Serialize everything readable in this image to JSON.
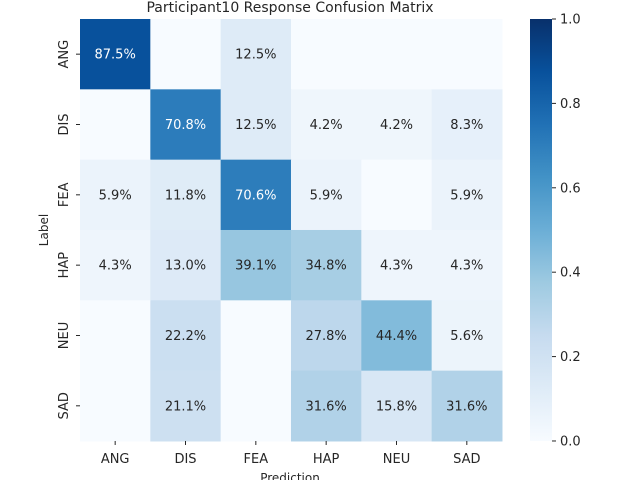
{
  "chart_data": {
    "type": "heatmap",
    "title": "Participant10 Response Confusion Matrix",
    "xlabel": "Prediction",
    "ylabel": "Label",
    "x_categories": [
      "ANG",
      "DIS",
      "FEA",
      "HAP",
      "NEU",
      "SAD"
    ],
    "y_categories": [
      "ANG",
      "DIS",
      "FEA",
      "HAP",
      "NEU",
      "SAD"
    ],
    "values": [
      [
        0.875,
        0.0,
        0.125,
        0.0,
        0.0,
        0.0
      ],
      [
        0.0,
        0.708,
        0.125,
        0.042,
        0.042,
        0.083
      ],
      [
        0.059,
        0.118,
        0.706,
        0.059,
        0.0,
        0.059
      ],
      [
        0.043,
        0.13,
        0.391,
        0.348,
        0.043,
        0.043
      ],
      [
        0.0,
        0.222,
        0.0,
        0.278,
        0.444,
        0.056
      ],
      [
        0.0,
        0.211,
        0.0,
        0.316,
        0.158,
        0.316
      ]
    ],
    "cell_labels": [
      [
        "87.5%",
        "",
        "12.5%",
        "",
        "",
        ""
      ],
      [
        "",
        "70.8%",
        "12.5%",
        "4.2%",
        "4.2%",
        "8.3%"
      ],
      [
        "5.9%",
        "11.8%",
        "70.6%",
        "5.9%",
        "",
        "5.9%"
      ],
      [
        "4.3%",
        "13.0%",
        "39.1%",
        "34.8%",
        "4.3%",
        "4.3%"
      ],
      [
        "",
        "22.2%",
        "",
        "27.8%",
        "44.4%",
        "5.6%"
      ],
      [
        "",
        "21.1%",
        "",
        "31.6%",
        "15.8%",
        "31.6%"
      ]
    ],
    "colorbar": {
      "range": [
        0.0,
        1.0
      ],
      "ticks": [
        "0.0",
        "0.2",
        "0.4",
        "0.6",
        "0.8",
        "1.0"
      ]
    },
    "colormap": "Blues"
  }
}
